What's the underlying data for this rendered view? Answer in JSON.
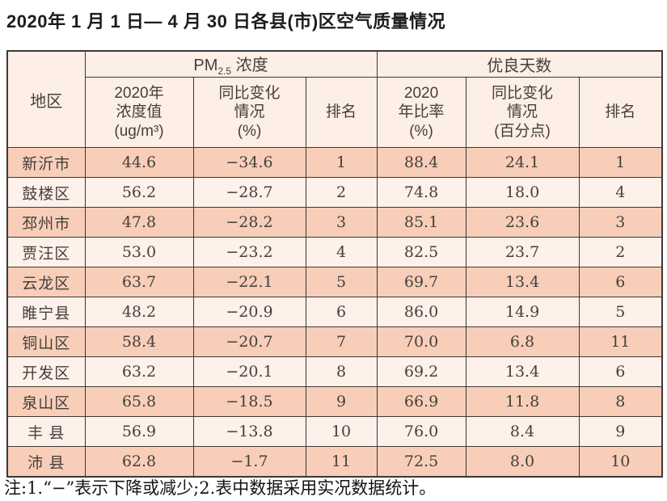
{
  "title": "2020年 1 月 1 日— 4 月 30 日各县(市)区空气质量情况",
  "footnote": "注:1.“−”表示下降或减少;2.表中数据采用实况数据统计。",
  "colors": {
    "row_dark": "#f8ceb9",
    "row_light": "#fdf1ea",
    "header_bg": "#fdeee6",
    "border": "#3c3836",
    "text": "#45403c"
  },
  "table": {
    "corner": "地区",
    "group_pm": {
      "prefix": "PM",
      "sub": "2.5",
      "suffix": " 浓度"
    },
    "group_good": "优良天数",
    "sub_headers": {
      "pm_value": [
        "2020年",
        "浓度值",
        "(ug/m³)"
      ],
      "pm_change": [
        "同比变化",
        "情况",
        "(%)"
      ],
      "pm_rank": [
        "排名"
      ],
      "good_ratio": [
        "2020",
        "年比率",
        "(%)"
      ],
      "good_change": [
        "同比变化",
        "情况",
        "(百分点)"
      ],
      "good_rank": [
        "排名"
      ]
    },
    "rows": [
      {
        "region": "新沂市",
        "pm_value": "44.6",
        "pm_change": "−34.6",
        "pm_rank": "1",
        "good_ratio": "88.4",
        "good_change": "24.1",
        "good_rank": "1"
      },
      {
        "region": "鼓楼区",
        "pm_value": "56.2",
        "pm_change": "−28.7",
        "pm_rank": "2",
        "good_ratio": "74.8",
        "good_change": "18.0",
        "good_rank": "4"
      },
      {
        "region": "邳州市",
        "pm_value": "47.8",
        "pm_change": "−28.2",
        "pm_rank": "3",
        "good_ratio": "85.1",
        "good_change": "23.6",
        "good_rank": "3"
      },
      {
        "region": "贾汪区",
        "pm_value": "53.0",
        "pm_change": "−23.2",
        "pm_rank": "4",
        "good_ratio": "82.5",
        "good_change": "23.7",
        "good_rank": "2"
      },
      {
        "region": "云龙区",
        "pm_value": "63.7",
        "pm_change": "−22.1",
        "pm_rank": "5",
        "good_ratio": "69.7",
        "good_change": "13.4",
        "good_rank": "6"
      },
      {
        "region": "睢宁县",
        "pm_value": "48.2",
        "pm_change": "−20.9",
        "pm_rank": "6",
        "good_ratio": "86.0",
        "good_change": "14.9",
        "good_rank": "5"
      },
      {
        "region": "铜山区",
        "pm_value": "58.4",
        "pm_change": "−20.7",
        "pm_rank": "7",
        "good_ratio": "70.0",
        "good_change": "6.8",
        "good_rank": "11"
      },
      {
        "region": "开发区",
        "pm_value": "63.2",
        "pm_change": "−20.1",
        "pm_rank": "8",
        "good_ratio": "69.2",
        "good_change": "13.4",
        "good_rank": "6"
      },
      {
        "region": "泉山区",
        "pm_value": "65.8",
        "pm_change": "−18.5",
        "pm_rank": "9",
        "good_ratio": "66.9",
        "good_change": "11.8",
        "good_rank": "8"
      },
      {
        "region": "丰 县",
        "pm_value": "56.9",
        "pm_change": "−13.8",
        "pm_rank": "10",
        "good_ratio": "76.0",
        "good_change": "8.4",
        "good_rank": "9"
      },
      {
        "region": "沛 县",
        "pm_value": "62.8",
        "pm_change": "−1.7",
        "pm_rank": "11",
        "good_ratio": "72.5",
        "good_change": "8.0",
        "good_rank": "10"
      }
    ]
  }
}
